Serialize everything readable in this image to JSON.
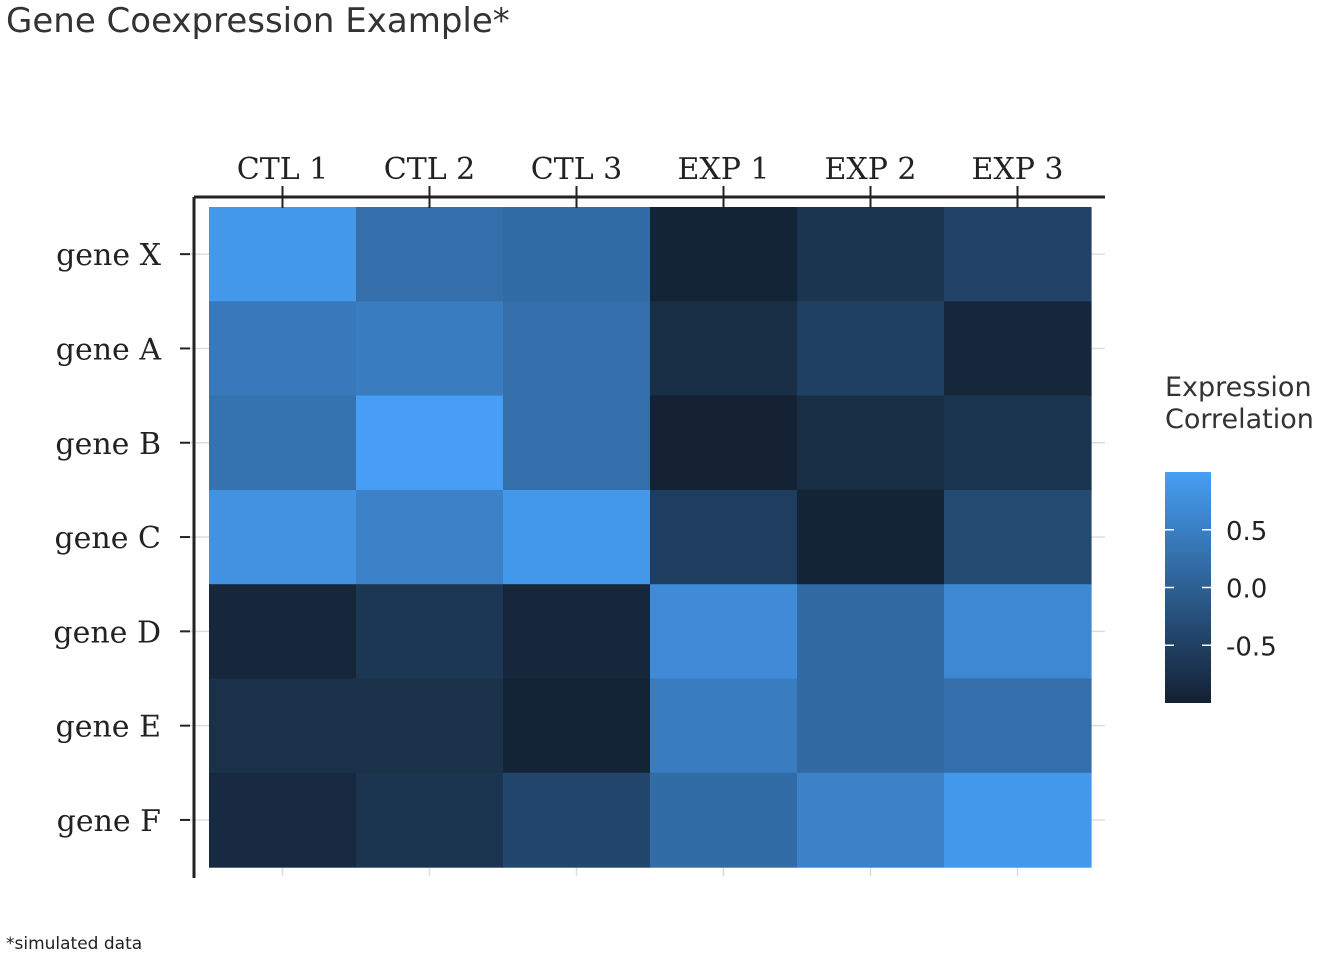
{
  "chart_data": {
    "type": "heatmap",
    "title": "Gene Coexpression Example*",
    "caption": "*simulated data",
    "x_categories": [
      "CTL 1",
      "CTL 2",
      "CTL 3",
      "EXP 1",
      "EXP 2",
      "EXP 3"
    ],
    "y_categories": [
      "gene X",
      "gene A",
      "gene B",
      "gene C",
      "gene D",
      "gene E",
      "gene F"
    ],
    "values": [
      [
        0.9,
        0.25,
        0.2,
        -0.95,
        -0.7,
        -0.45
      ],
      [
        0.4,
        0.45,
        0.25,
        -0.8,
        -0.5,
        -0.9
      ],
      [
        0.3,
        1.0,
        0.25,
        -1.0,
        -0.8,
        -0.7
      ],
      [
        0.8,
        0.55,
        0.9,
        -0.55,
        -0.95,
        -0.35
      ],
      [
        -0.9,
        -0.65,
        -0.9,
        0.7,
        0.15,
        0.65
      ],
      [
        -0.75,
        -0.75,
        -0.95,
        0.45,
        0.15,
        0.25
      ],
      [
        -0.85,
        -0.7,
        -0.4,
        0.2,
        0.55,
        0.9
      ]
    ],
    "legend": {
      "title_lines": [
        "Expression",
        "Correlation"
      ],
      "breaks": [
        0.5,
        0.0,
        -0.5
      ],
      "break_labels": [
        "0.5",
        "0.0",
        "-0.5"
      ],
      "range": [
        -1.0,
        1.0
      ],
      "low_color": "#132132",
      "high_color": "#479ef4"
    },
    "x_axis_position": "top",
    "grid": true
  }
}
